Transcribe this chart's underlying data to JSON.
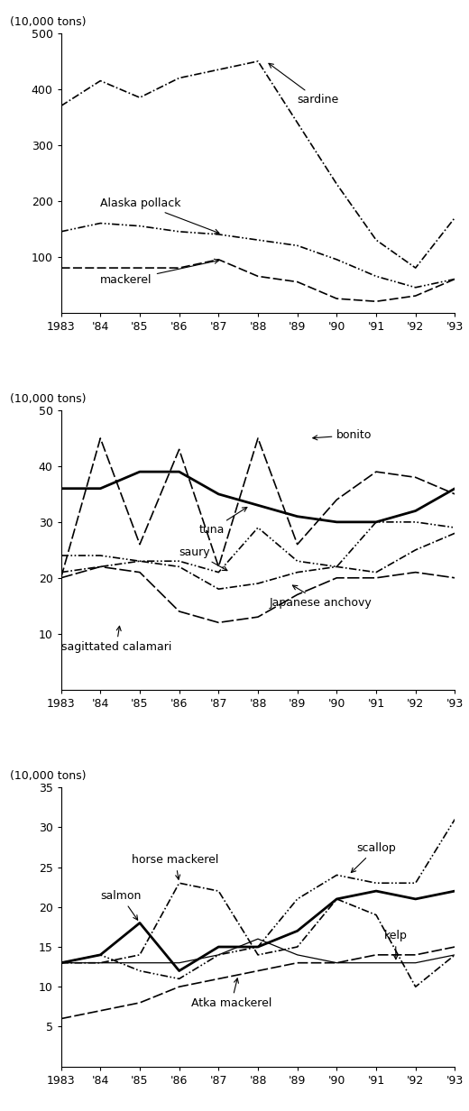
{
  "years": [
    1983,
    1984,
    1985,
    1986,
    1987,
    1988,
    1989,
    1990,
    1991,
    1992,
    1993
  ],
  "xtick_labels": [
    "1983",
    "'84",
    "'85",
    "'86",
    "'87",
    "'88",
    "'89",
    "'90",
    "'91",
    "'92",
    "'93"
  ],
  "panel1": {
    "ylim": [
      0,
      500
    ],
    "yticks": [
      0,
      100,
      200,
      300,
      400,
      500
    ],
    "ylabel_top": "(10,000 tons) 500",
    "sardine": [
      370,
      415,
      385,
      420,
      435,
      450,
      340,
      230,
      130,
      80,
      170
    ],
    "alaska_pollack": [
      145,
      160,
      155,
      145,
      140,
      130,
      120,
      95,
      65,
      45,
      60
    ],
    "mackerel": [
      80,
      80,
      80,
      80,
      95,
      65,
      55,
      25,
      20,
      30,
      60
    ]
  },
  "panel2": {
    "ylim": [
      0,
      50
    ],
    "yticks": [
      0,
      10,
      20,
      30,
      40,
      50
    ],
    "ylabel_top": "(10,000 tons) 50",
    "tuna": [
      36,
      36,
      39,
      39,
      35,
      33,
      31,
      30,
      30,
      32,
      36
    ],
    "bonito": [
      20,
      45,
      26,
      43,
      22,
      45,
      26,
      34,
      39,
      38,
      35
    ],
    "saury": [
      24,
      24,
      23,
      23,
      21,
      29,
      23,
      22,
      30,
      30,
      29
    ],
    "japanese_anchovy": [
      21,
      22,
      23,
      22,
      18,
      19,
      21,
      22,
      21,
      25,
      28
    ],
    "sagittated_calamari": [
      20,
      22,
      21,
      14,
      12,
      13,
      17,
      20,
      20,
      21,
      20
    ]
  },
  "panel3": {
    "ylim": [
      0,
      35
    ],
    "yticks": [
      0,
      5,
      10,
      15,
      20,
      25,
      30,
      35
    ],
    "ylabel_top": "(10,000 tons) 35",
    "scallop": [
      13,
      14,
      12,
      11,
      14,
      15,
      21,
      24,
      23,
      23,
      31
    ],
    "salmon": [
      13,
      14,
      18,
      12,
      15,
      15,
      17,
      21,
      22,
      21,
      22
    ],
    "horse_mackerel": [
      13,
      13,
      14,
      23,
      22,
      14,
      15,
      21,
      19,
      10,
      14
    ],
    "kelp": [
      13,
      13,
      13,
      13,
      14,
      16,
      14,
      13,
      13,
      13,
      14
    ],
    "atka_mackerel": [
      6,
      7,
      8,
      10,
      11,
      12,
      13,
      13,
      14,
      14,
      15
    ]
  }
}
